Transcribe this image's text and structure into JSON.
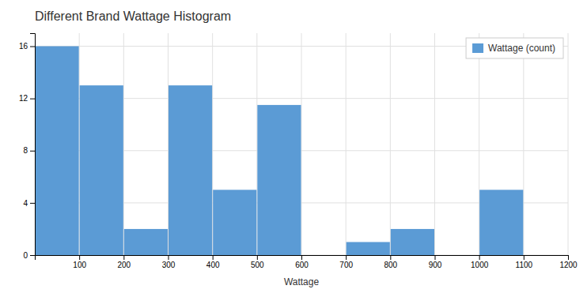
{
  "chart_data": {
    "type": "histogram",
    "title": "Different Brand Wattage Histogram",
    "xlabel": "Wattage",
    "bins": [
      0,
      100,
      200,
      300,
      400,
      500,
      600,
      700,
      800,
      900,
      1000,
      1100,
      1200
    ],
    "series": [
      {
        "name": "Wattage (count)",
        "color": "#5B9BD5",
        "values": [
          16,
          13,
          2,
          13,
          5,
          11.5,
          0,
          1,
          2,
          0,
          5,
          0
        ]
      }
    ],
    "xlim": [
      0,
      1200
    ],
    "ylim": [
      0,
      17
    ],
    "xticks": [
      100,
      200,
      300,
      400,
      500,
      600,
      700,
      800,
      900,
      1000,
      1100,
      1200
    ],
    "yticks": [
      0,
      4,
      8,
      12,
      16
    ],
    "grid": true,
    "legend": "top-right"
  }
}
